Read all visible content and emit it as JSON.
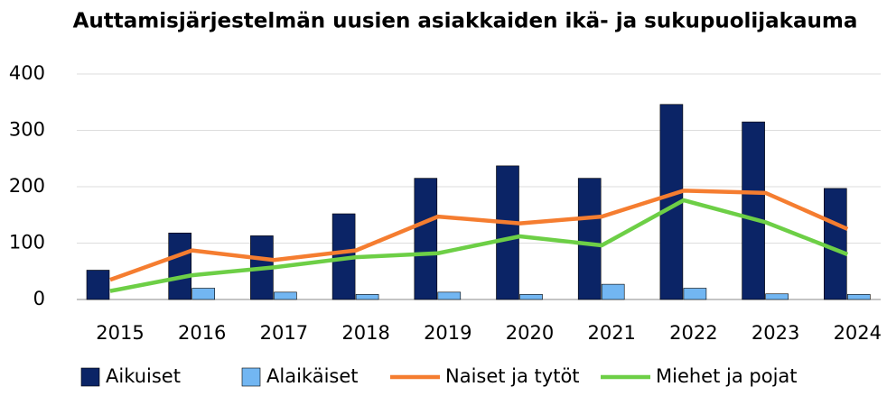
{
  "chart_data": {
    "type": "bar_line",
    "title": "Auttamisjärjestelmän uusien asiakkaiden ikä- ja sukupuolijakauma",
    "categories": [
      "2015",
      "2016",
      "2017",
      "2018",
      "2019",
      "2020",
      "2021",
      "2022",
      "2023",
      "2024"
    ],
    "series": [
      {
        "name": "Aikuiset",
        "type": "bar",
        "color": "#0b2466",
        "values": [
          52,
          118,
          113,
          152,
          215,
          237,
          215,
          346,
          315,
          197
        ]
      },
      {
        "name": "Alaikäiset",
        "type": "bar",
        "color": "#72b6f2",
        "values": [
          0,
          20,
          13,
          9,
          13,
          9,
          27,
          20,
          10,
          9
        ]
      },
      {
        "name": "Naiset ja tytöt",
        "type": "line",
        "color": "#f57d30",
        "values": [
          35,
          87,
          70,
          87,
          147,
          135,
          147,
          193,
          189,
          125
        ]
      },
      {
        "name": "Miehet ja pojat",
        "type": "line",
        "color": "#6dcf46",
        "values": [
          15,
          43,
          57,
          75,
          82,
          112,
          96,
          176,
          137,
          80
        ]
      }
    ],
    "ylim": [
      0,
      400
    ],
    "yticks": [
      0,
      100,
      200,
      300,
      400
    ],
    "grid": true
  }
}
